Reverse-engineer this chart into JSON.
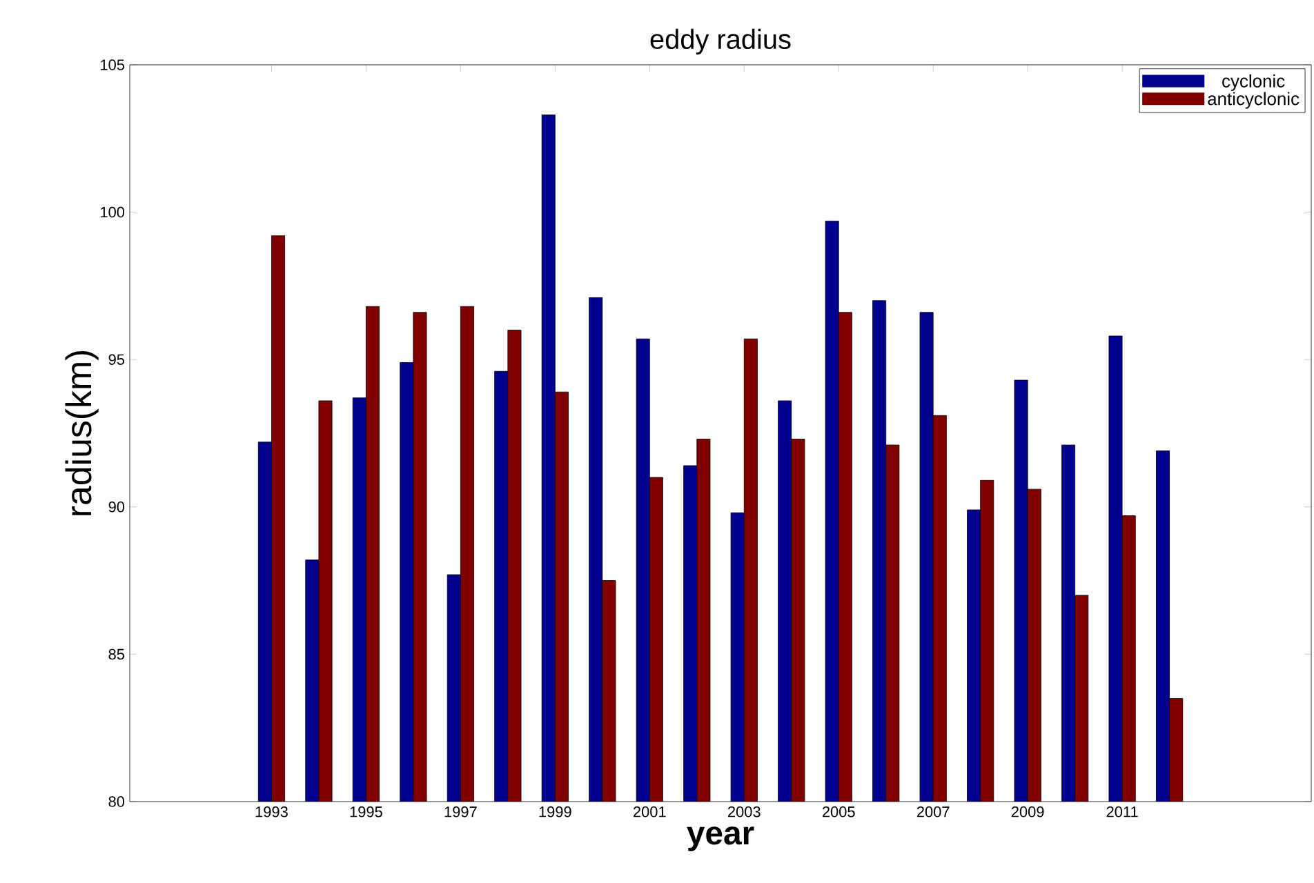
{
  "chart_data": {
    "type": "bar",
    "title": "eddy radius",
    "xlabel": "year",
    "ylabel": "radius(km)",
    "x": [
      1993,
      1994,
      1995,
      1996,
      1997,
      1998,
      1999,
      2000,
      2001,
      2002,
      2003,
      2004,
      2005,
      2006,
      2007,
      2008,
      2009,
      2010,
      2011,
      2012
    ],
    "series": [
      {
        "name": "cyclonic",
        "color": "#000090",
        "values": [
          92.2,
          88.2,
          93.7,
          94.9,
          87.7,
          94.6,
          103.3,
          97.1,
          95.7,
          91.4,
          89.8,
          93.6,
          99.7,
          97.0,
          96.6,
          89.9,
          94.3,
          92.1,
          95.8,
          91.9
        ]
      },
      {
        "name": "anticyclonic",
        "color": "#800000",
        "values": [
          99.2,
          93.6,
          96.8,
          96.6,
          96.8,
          96.0,
          93.9,
          87.5,
          91.0,
          92.3,
          95.7,
          92.3,
          96.6,
          92.1,
          93.1,
          90.9,
          90.6,
          87.0,
          89.7,
          83.5
        ]
      }
    ],
    "xlim": [
      1990,
      2015
    ],
    "ylim": [
      80,
      105
    ],
    "xticks": [
      1993,
      1995,
      1997,
      1999,
      2001,
      2003,
      2005,
      2007,
      2009,
      2011
    ],
    "yticks": [
      80,
      85,
      90,
      95,
      100,
      105
    ],
    "grid": false,
    "legend": "top right"
  }
}
